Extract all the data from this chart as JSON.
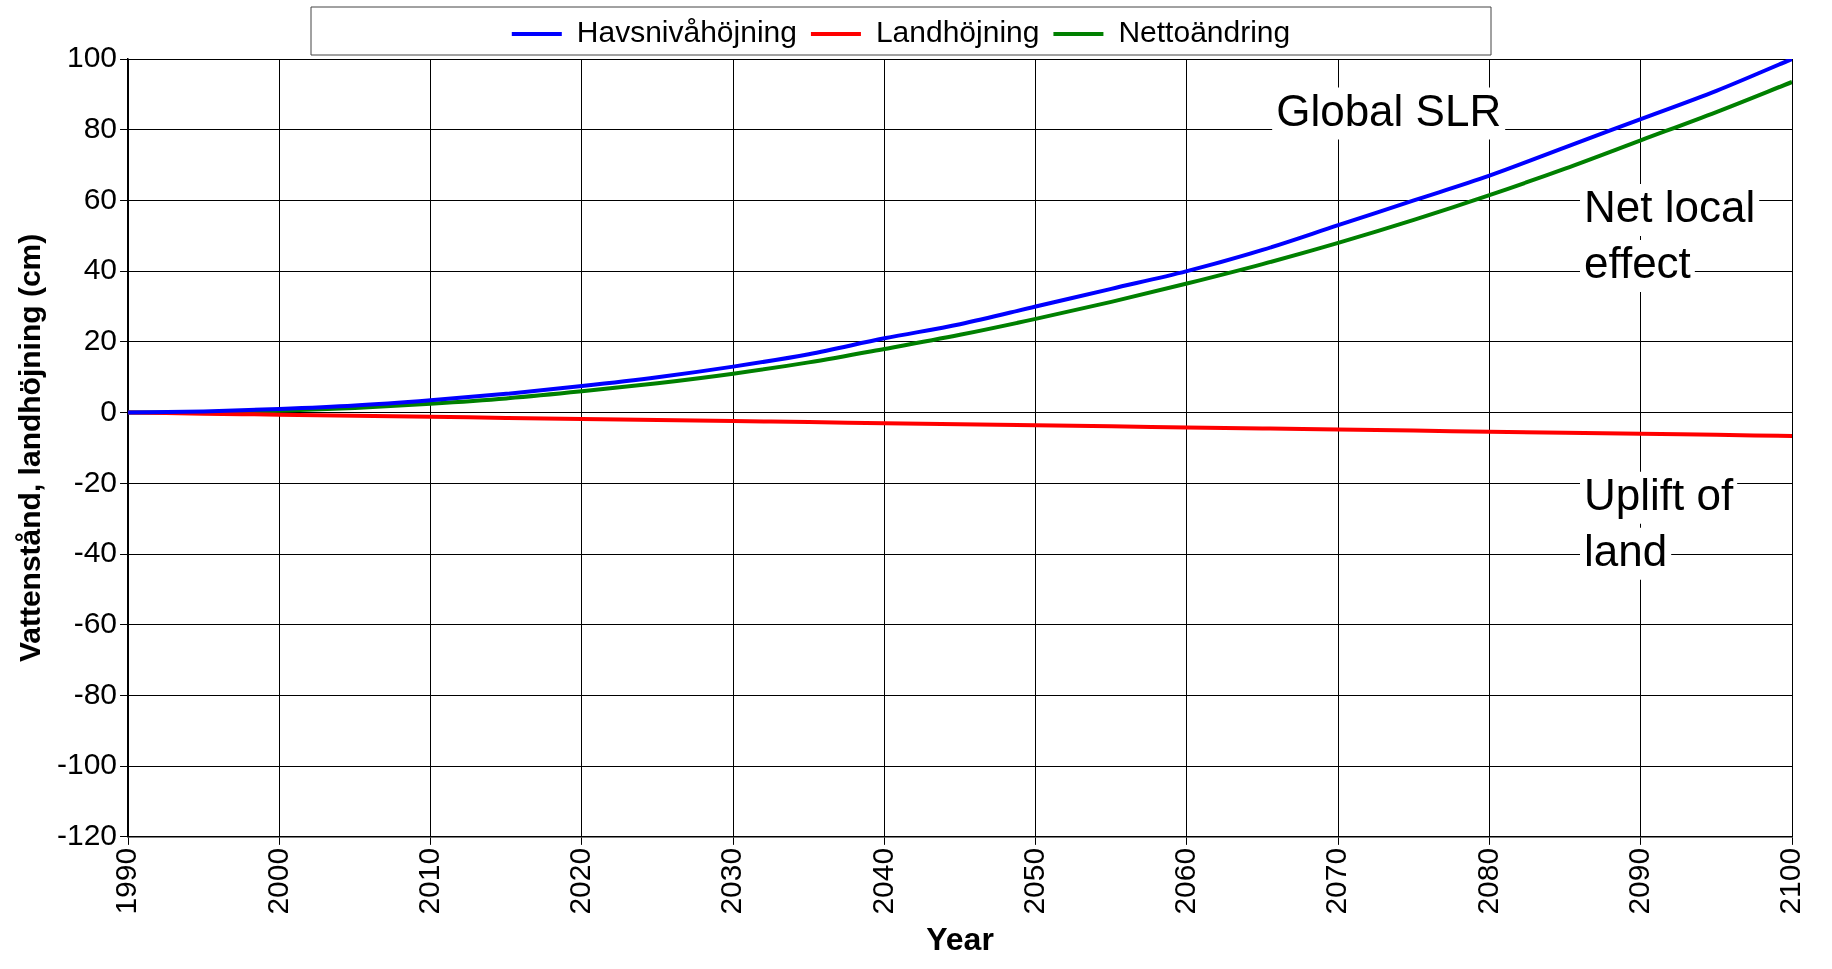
{
  "chart_data": {
    "type": "line",
    "xlabel": "Year",
    "ylabel": "Vattenstånd, landhöjning (cm)",
    "x": [
      1990,
      1995,
      2000,
      2005,
      2010,
      2015,
      2020,
      2025,
      2030,
      2035,
      2040,
      2045,
      2050,
      2055,
      2060,
      2065,
      2070,
      2075,
      2080,
      2085,
      2090,
      2095,
      2100
    ],
    "series": [
      {
        "name": "Havsnivåhöjning",
        "color": "#0000ff",
        "values": [
          0,
          0.3,
          1,
          2,
          3.5,
          5.3,
          7.5,
          10,
          13,
          16.5,
          21,
          25,
          30,
          35,
          40,
          46,
          53,
          60,
          67,
          75,
          83,
          91,
          100
        ]
      },
      {
        "name": "Landhöjning",
        "color": "#ff0000",
        "values": [
          0,
          -0.3,
          -0.6,
          -0.9,
          -1.2,
          -1.5,
          -1.8,
          -2.1,
          -2.4,
          -2.7,
          -3,
          -3.3,
          -3.6,
          -3.9,
          -4.2,
          -4.5,
          -4.8,
          -5.1,
          -5.4,
          -5.7,
          -6,
          -6.3,
          -6.6
        ]
      },
      {
        "name": "Nettoändring",
        "color": "#008000",
        "values": [
          0,
          0,
          0.5,
          1.3,
          2.5,
          4,
          6,
          8.3,
          11,
          14.2,
          18,
          22,
          26.5,
          31.3,
          36.5,
          42,
          48,
          54.5,
          61.5,
          69,
          77,
          85,
          93.5
        ]
      }
    ],
    "xlim": [
      1990,
      2100
    ],
    "xticks": [
      1990,
      2000,
      2010,
      2020,
      2030,
      2040,
      2050,
      2060,
      2070,
      2080,
      2090,
      2100
    ],
    "ylim": [
      -120,
      100
    ],
    "yticks": [
      -120,
      -100,
      -80,
      -60,
      -40,
      -20,
      0,
      20,
      40,
      60,
      80,
      100
    ],
    "grid": true,
    "legend": "top",
    "marker": "none",
    "line_style": "solid",
    "annotations": [
      "Global SLR",
      "Net local effect",
      "Uplift of land"
    ]
  }
}
